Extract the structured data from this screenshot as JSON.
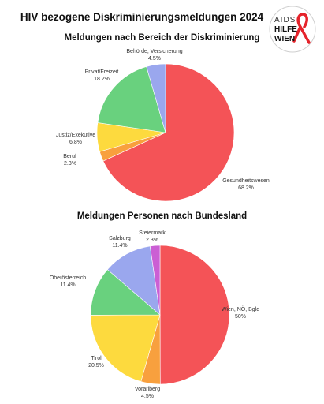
{
  "title": "HIV bezogene Diskriminierungsmeldungen 2024",
  "logo": {
    "line1": "AIDS",
    "line2": "HILFE",
    "line3": "WIEN",
    "ribbon_color": "#e5232b"
  },
  "chart_data": [
    {
      "type": "pie",
      "title": "Meldungen nach Bereich der Diskriminierung",
      "series": [
        {
          "name": "Gesundheitswesen",
          "value": 68.2,
          "label": "68.2%",
          "color": "#f45357"
        },
        {
          "name": "Beruf",
          "value": 2.3,
          "label": "2.3%",
          "color": "#f8a03e"
        },
        {
          "name": "Justiz/Exekutive",
          "value": 6.8,
          "label": "6.8%",
          "color": "#fdda3e"
        },
        {
          "name": "Privat/Freizeit",
          "value": 18.2,
          "label": "18.2%",
          "color": "#69d17e"
        },
        {
          "name": "Behörde, Versicherung",
          "value": 4.5,
          "label": "4.5%",
          "color": "#9aa7ee"
        }
      ]
    },
    {
      "type": "pie",
      "title": "Meldungen Personen nach Bundesland",
      "series": [
        {
          "name": "Wien, NÖ, Bgld",
          "value": 50,
          "label": "50%",
          "color": "#f45357"
        },
        {
          "name": "Vorarlberg",
          "value": 4.5,
          "label": "4.5%",
          "color": "#f8a03e"
        },
        {
          "name": "Tirol",
          "value": 20.5,
          "label": "20.5%",
          "color": "#fdda3e"
        },
        {
          "name": "Oberösterreich",
          "value": 11.4,
          "label": "11.4%",
          "color": "#69d17e"
        },
        {
          "name": "Salzburg",
          "value": 11.4,
          "label": "11.4%",
          "color": "#9aa7ee"
        },
        {
          "name": "Steiermark",
          "value": 2.3,
          "label": "2.3%",
          "color": "#cb5fd4"
        }
      ]
    }
  ]
}
